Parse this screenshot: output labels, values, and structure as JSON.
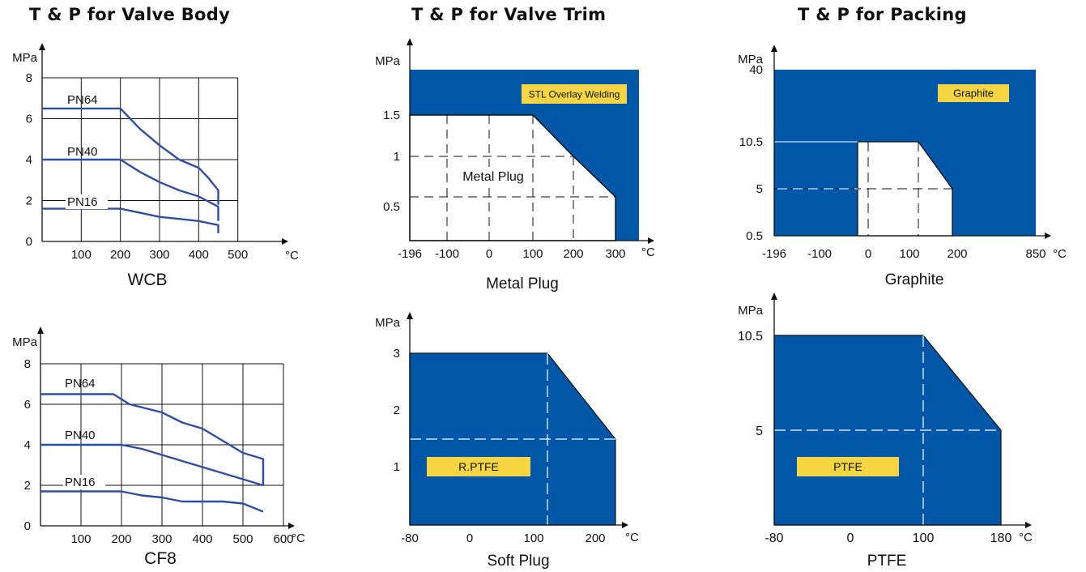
{
  "headings": {
    "valve_body": "T & P for Valve Body",
    "valve_trim": "T & P for Valve Trim",
    "packing": "T & P for Packing"
  },
  "colors": {
    "series_line": "#2f4ea3",
    "region_fill": "#0057a8",
    "label_fill": "#f5d642",
    "axis": "#111111",
    "grid": "#111111",
    "dash": "#ffffff"
  },
  "chart_data": [
    {
      "id": "wcb",
      "type": "line",
      "title": "WCB",
      "ylabel": "MPa",
      "xlabel": "°C",
      "xlim": [
        0,
        600
      ],
      "ylim": [
        0,
        8
      ],
      "x_ticks": [
        "100",
        "200",
        "300",
        "400",
        "500"
      ],
      "y_ticks": [
        "0",
        "2",
        "4",
        "6",
        "8"
      ],
      "grid": true,
      "series": [
        {
          "name": "PN64",
          "points": [
            [
              0,
              6.5
            ],
            [
              200,
              6.5
            ],
            [
              250,
              5.5
            ],
            [
              300,
              4.7
            ],
            [
              350,
              4.0
            ],
            [
              400,
              3.6
            ],
            [
              425,
              3.1
            ],
            [
              450,
              2.5
            ],
            [
              450,
              1.8
            ]
          ]
        },
        {
          "name": "PN40",
          "points": [
            [
              0,
              4.0
            ],
            [
              200,
              4.0
            ],
            [
              250,
              3.4
            ],
            [
              300,
              2.9
            ],
            [
              350,
              2.5
            ],
            [
              400,
              2.2
            ],
            [
              450,
              1.7
            ],
            [
              450,
              1.0
            ]
          ]
        },
        {
          "name": "PN16",
          "points": [
            [
              0,
              1.6
            ],
            [
              200,
              1.6
            ],
            [
              250,
              1.4
            ],
            [
              300,
              1.2
            ],
            [
              350,
              1.1
            ],
            [
              400,
              1.0
            ],
            [
              450,
              0.8
            ],
            [
              450,
              0.4
            ]
          ]
        }
      ]
    },
    {
      "id": "cf8",
      "type": "line",
      "title": "CF8",
      "ylabel": "MPa",
      "xlabel": "°C",
      "xlim": [
        0,
        600
      ],
      "ylim": [
        0,
        8
      ],
      "x_ticks": [
        "100",
        "200",
        "300",
        "400",
        "500",
        "600"
      ],
      "y_ticks": [
        "0",
        "2",
        "4",
        "6",
        "8"
      ],
      "grid": true,
      "series": [
        {
          "name": "PN64",
          "points": [
            [
              0,
              6.5
            ],
            [
              180,
              6.5
            ],
            [
              220,
              6.0
            ],
            [
              300,
              5.6
            ],
            [
              350,
              5.1
            ],
            [
              400,
              4.8
            ],
            [
              450,
              4.2
            ],
            [
              500,
              3.6
            ],
            [
              550,
              3.3
            ],
            [
              550,
              2.0
            ]
          ]
        },
        {
          "name": "PN40",
          "points": [
            [
              0,
              4.0
            ],
            [
              200,
              4.0
            ],
            [
              250,
              3.8
            ],
            [
              300,
              3.5
            ],
            [
              350,
              3.2
            ],
            [
              400,
              2.9
            ],
            [
              450,
              2.6
            ],
            [
              500,
              2.3
            ],
            [
              550,
              2.0
            ]
          ]
        },
        {
          "name": "PN16",
          "points": [
            [
              0,
              1.7
            ],
            [
              200,
              1.7
            ],
            [
              250,
              1.5
            ],
            [
              300,
              1.4
            ],
            [
              350,
              1.2
            ],
            [
              400,
              1.2
            ],
            [
              450,
              1.2
            ],
            [
              500,
              1.1
            ],
            [
              550,
              0.7
            ]
          ]
        }
      ]
    },
    {
      "id": "metal-plug",
      "type": "area",
      "title": "Metal Plug",
      "ylabel": "MPa",
      "xlabel": "°C",
      "x_ticks": [
        "-196",
        "-100",
        "0",
        "100",
        "200",
        "300"
      ],
      "y_ticks": [
        "0.5",
        "1",
        "1.5"
      ],
      "max_temperature": 350,
      "regions": [
        {
          "label": "STL Overlay Welding",
          "polygon": [
            [
              -196,
              0
            ],
            [
              -196,
              2.0
            ],
            [
              350,
              2.0
            ],
            [
              350,
              0
            ]
          ]
        },
        {
          "label": "Metal Plug",
          "polygon": [
            [
              -196,
              0
            ],
            [
              -196,
              1.5
            ],
            [
              100,
              1.5
            ],
            [
              200,
              1.0
            ],
            [
              300,
              0.55
            ],
            [
              300,
              0
            ]
          ]
        }
      ]
    },
    {
      "id": "soft-plug",
      "type": "area",
      "title": "Soft Plug",
      "ylabel": "MPa",
      "xlabel": "°C",
      "x_ticks": [
        "-80",
        "0",
        "100",
        "200"
      ],
      "y_ticks": [
        "1",
        "2",
        "3"
      ],
      "regions": [
        {
          "label": "R.PTFE",
          "polygon": [
            [
              -80,
              0
            ],
            [
              -80,
              3.0
            ],
            [
              120,
              3.0
            ],
            [
              230,
              1.5
            ],
            [
              230,
              0
            ]
          ]
        }
      ]
    },
    {
      "id": "graphite",
      "type": "area",
      "title": "Graphite",
      "ylabel": "MPa",
      "xlabel": "°C",
      "x_ticks": [
        "-196",
        "-100",
        "0",
        "100",
        "200",
        "850"
      ],
      "y_ticks": [
        "0.5",
        "5",
        "10.5",
        "40"
      ],
      "regions": [
        {
          "label": "Graphite",
          "polygon": [
            [
              -196,
              0.5
            ],
            [
              -196,
              40
            ],
            [
              850,
              40
            ],
            [
              850,
              0.5
            ]
          ]
        }
      ],
      "cutout": [
        [
          -20,
          0.5
        ],
        [
          -20,
          10.5
        ],
        [
          120,
          10.5
        ],
        [
          180,
          5
        ],
        [
          180,
          0.5
        ]
      ]
    },
    {
      "id": "ptfe",
      "type": "area",
      "title": "PTFE",
      "ylabel": "MPa",
      "xlabel": "°C",
      "x_ticks": [
        "-80",
        "0",
        "100",
        "180"
      ],
      "y_ticks": [
        "5",
        "10.5"
      ],
      "regions": [
        {
          "label": "PTFE",
          "polygon": [
            [
              -80,
              0
            ],
            [
              -80,
              10.5
            ],
            [
              100,
              10.5
            ],
            [
              180,
              5
            ],
            [
              180,
              0
            ]
          ]
        }
      ]
    }
  ]
}
